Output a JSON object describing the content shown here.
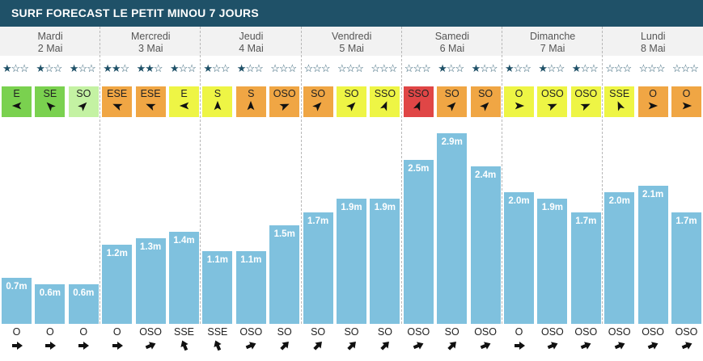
{
  "title": "SURF FORECAST LE PETIT MINOU 7 JOURS",
  "colors": {
    "header_bg": "#1f5168",
    "bar": "#7fc1de",
    "wind_levels": {
      "green": "#7ad14f",
      "lightgreen": "#c4f2a3",
      "yellow": "#eef545",
      "orange": "#f0a644",
      "red": "#e04646"
    },
    "star": "#1f5168"
  },
  "days": [
    {
      "name": "Mardi",
      "date": "2 Mai",
      "slots": [
        {
          "stars": 1,
          "wind": {
            "dir": "E",
            "deg": 90,
            "level": "green"
          },
          "height": 0.7,
          "label": "0.7m",
          "swell": {
            "dir": "O",
            "deg": 270
          }
        },
        {
          "stars": 1,
          "wind": {
            "dir": "SE",
            "deg": 135,
            "level": "green"
          },
          "height": 0.6,
          "label": "0.6m",
          "swell": {
            "dir": "O",
            "deg": 270
          }
        },
        {
          "stars": 1,
          "wind": {
            "dir": "SO",
            "deg": 225,
            "level": "lightgreen"
          },
          "height": 0.6,
          "label": "0.6m",
          "swell": {
            "dir": "O",
            "deg": 270
          }
        }
      ]
    },
    {
      "name": "Mercredi",
      "date": "3 Mai",
      "slots": [
        {
          "stars": 2,
          "wind": {
            "dir": "ESE",
            "deg": 112,
            "level": "orange"
          },
          "height": 1.2,
          "label": "1.2m",
          "swell": {
            "dir": "O",
            "deg": 270
          }
        },
        {
          "stars": 2,
          "wind": {
            "dir": "ESE",
            "deg": 112,
            "level": "orange"
          },
          "height": 1.3,
          "label": "1.3m",
          "swell": {
            "dir": "OSO",
            "deg": 247
          }
        },
        {
          "stars": 1,
          "wind": {
            "dir": "E",
            "deg": 90,
            "level": "yellow"
          },
          "height": 1.4,
          "label": "1.4m",
          "swell": {
            "dir": "SSE",
            "deg": 157
          }
        }
      ]
    },
    {
      "name": "Jeudi",
      "date": "4 Mai",
      "slots": [
        {
          "stars": 1,
          "wind": {
            "dir": "S",
            "deg": 180,
            "level": "yellow"
          },
          "height": 1.1,
          "label": "1.1m",
          "swell": {
            "dir": "SSE",
            "deg": 157
          }
        },
        {
          "stars": 1,
          "wind": {
            "dir": "S",
            "deg": 180,
            "level": "orange"
          },
          "height": 1.1,
          "label": "1.1m",
          "swell": {
            "dir": "OSO",
            "deg": 247
          }
        },
        {
          "stars": 0,
          "wind": {
            "dir": "OSO",
            "deg": 247,
            "level": "orange"
          },
          "height": 1.5,
          "label": "1.5m",
          "swell": {
            "dir": "SO",
            "deg": 225
          }
        }
      ]
    },
    {
      "name": "Vendredi",
      "date": "5 Mai",
      "slots": [
        {
          "stars": 0,
          "wind": {
            "dir": "SO",
            "deg": 225,
            "level": "orange"
          },
          "height": 1.7,
          "label": "1.7m",
          "swell": {
            "dir": "SO",
            "deg": 225
          }
        },
        {
          "stars": 0,
          "wind": {
            "dir": "SO",
            "deg": 225,
            "level": "yellow"
          },
          "height": 1.9,
          "label": "1.9m",
          "swell": {
            "dir": "SO",
            "deg": 225
          }
        },
        {
          "stars": 0,
          "wind": {
            "dir": "SSO",
            "deg": 202,
            "level": "yellow"
          },
          "height": 1.9,
          "label": "1.9m",
          "swell": {
            "dir": "SO",
            "deg": 225
          }
        }
      ]
    },
    {
      "name": "Samedi",
      "date": "6 Mai",
      "slots": [
        {
          "stars": 0,
          "wind": {
            "dir": "SSO",
            "deg": 202,
            "level": "red"
          },
          "height": 2.5,
          "label": "2.5m",
          "swell": {
            "dir": "OSO",
            "deg": 247
          }
        },
        {
          "stars": 1,
          "wind": {
            "dir": "SO",
            "deg": 225,
            "level": "orange"
          },
          "height": 2.9,
          "label": "2.9m",
          "swell": {
            "dir": "SO",
            "deg": 225
          }
        },
        {
          "stars": 1,
          "wind": {
            "dir": "SO",
            "deg": 225,
            "level": "orange"
          },
          "height": 2.4,
          "label": "2.4m",
          "swell": {
            "dir": "OSO",
            "deg": 247
          }
        }
      ]
    },
    {
      "name": "Dimanche",
      "date": "7 Mai",
      "slots": [
        {
          "stars": 1,
          "wind": {
            "dir": "O",
            "deg": 270,
            "level": "yellow"
          },
          "height": 2.0,
          "label": "2.0m",
          "swell": {
            "dir": "O",
            "deg": 270
          }
        },
        {
          "stars": 1,
          "wind": {
            "dir": "OSO",
            "deg": 247,
            "level": "yellow"
          },
          "height": 1.9,
          "label": "1.9m",
          "swell": {
            "dir": "OSO",
            "deg": 247
          }
        },
        {
          "stars": 1,
          "wind": {
            "dir": "OSO",
            "deg": 247,
            "level": "yellow"
          },
          "height": 1.7,
          "label": "1.7m",
          "swell": {
            "dir": "OSO",
            "deg": 247
          }
        }
      ]
    },
    {
      "name": "Lundi",
      "date": "8 Mai",
      "slots": [
        {
          "stars": 0,
          "wind": {
            "dir": "SSE",
            "deg": 157,
            "level": "yellow"
          },
          "height": 2.0,
          "label": "2.0m",
          "swell": {
            "dir": "OSO",
            "deg": 247
          }
        },
        {
          "stars": 0,
          "wind": {
            "dir": "O",
            "deg": 270,
            "level": "orange"
          },
          "height": 2.1,
          "label": "2.1m",
          "swell": {
            "dir": "OSO",
            "deg": 247
          }
        },
        {
          "stars": 0,
          "wind": {
            "dir": "O",
            "deg": 270,
            "level": "orange"
          },
          "height": 1.7,
          "label": "1.7m",
          "swell": {
            "dir": "OSO",
            "deg": 247
          }
        }
      ]
    }
  ]
}
